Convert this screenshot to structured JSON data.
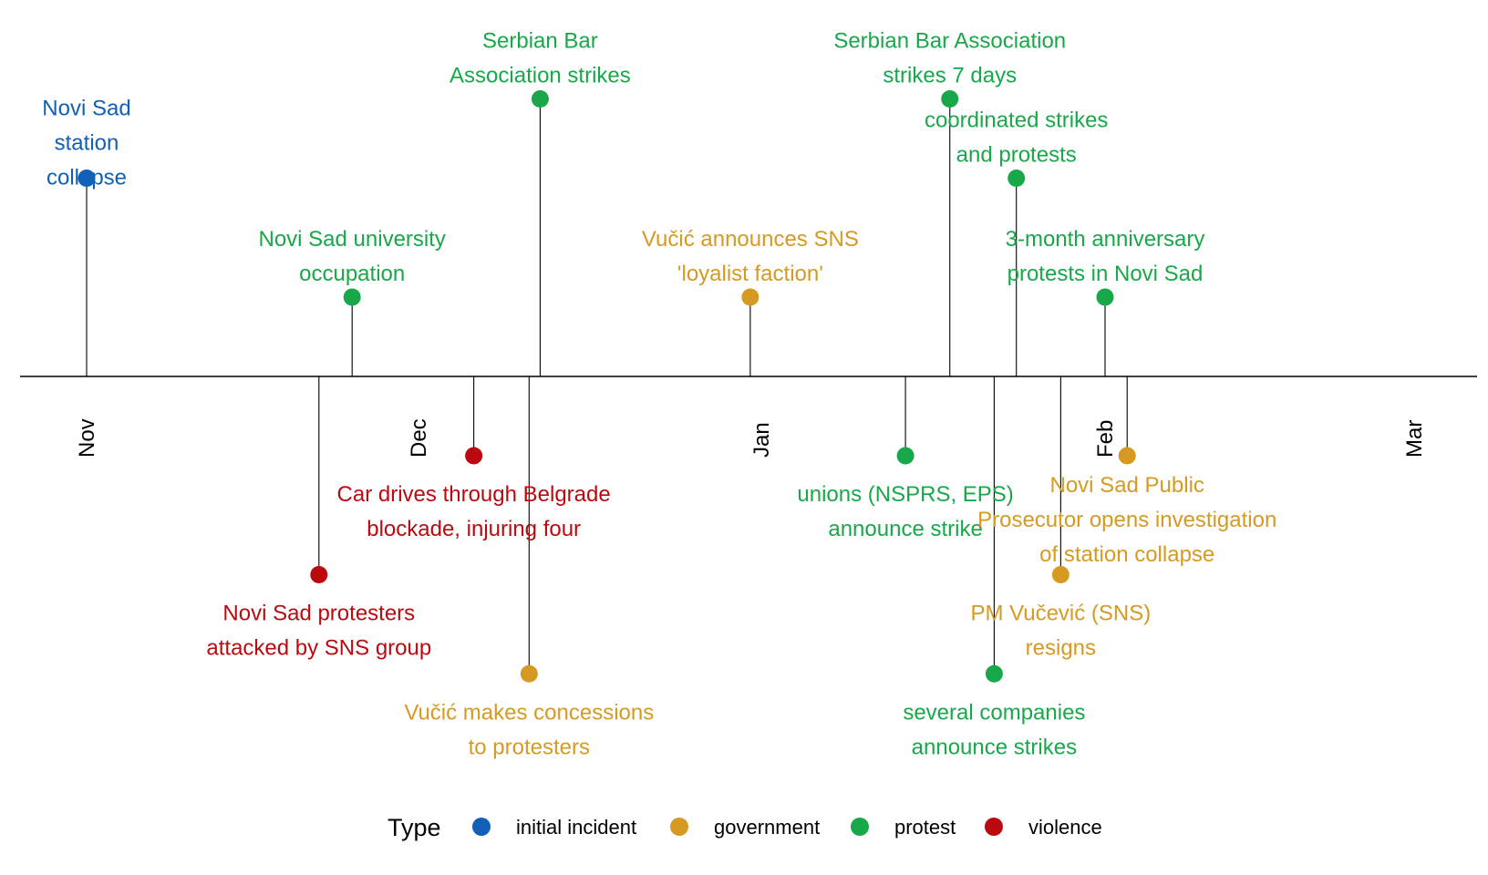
{
  "chart_data": {
    "type": "timeline",
    "colors": {
      "initial incident": "#1060b8",
      "government": "#d69a22",
      "protest": "#18a84a",
      "violence": "#bb0a0f"
    },
    "ticks": [
      {
        "label": "Nov",
        "date": "2024-11-01"
      },
      {
        "label": "Dec",
        "date": "2024-12-01"
      },
      {
        "label": "Jan",
        "date": "2025-01-01"
      },
      {
        "label": "Feb",
        "date": "2025-02-01"
      },
      {
        "label": "Mar",
        "date": "2025-03-01"
      }
    ],
    "x_range": [
      "2024-10-26",
      "2025-03-09"
    ],
    "events": [
      {
        "date": "2024-11-01",
        "type": "initial incident",
        "level": 2.5,
        "lines": [
          "Novi Sad",
          "station",
          "collapse"
        ]
      },
      {
        "date": "2024-11-22",
        "type": "violence",
        "level": -2.5,
        "lines": [
          "Novi Sad protesters",
          "attacked by SNS group"
        ]
      },
      {
        "date": "2024-11-25",
        "type": "protest",
        "level": 1.0,
        "lines": [
          "Novi Sad university",
          "occupation"
        ]
      },
      {
        "date": "2024-12-06",
        "type": "violence",
        "level": -1.0,
        "lines": [
          "Car drives through Belgrade",
          "blockade, injuring four"
        ]
      },
      {
        "date": "2024-12-11",
        "type": "government",
        "level": -3.75,
        "lines": [
          "Vučić makes concessions",
          "to protesters"
        ]
      },
      {
        "date": "2024-12-12",
        "type": "protest",
        "level": 3.5,
        "lines": [
          "Serbian Bar",
          "Association strikes"
        ]
      },
      {
        "date": "2024-12-31",
        "type": "government",
        "level": 1.0,
        "lines": [
          "Vučić announces SNS",
          "'loyalist faction'"
        ]
      },
      {
        "date": "2025-01-14",
        "type": "protest",
        "level": -1.0,
        "lines": [
          "unions (NSPRS, EPS)",
          "announce strike"
        ]
      },
      {
        "date": "2025-01-18",
        "type": "protest",
        "level": 3.5,
        "lines": [
          "Serbian Bar Association",
          "strikes 7 days"
        ]
      },
      {
        "date": "2025-01-22",
        "type": "protest",
        "level": -3.75,
        "lines": [
          "several companies",
          "announce strikes"
        ]
      },
      {
        "date": "2025-01-24",
        "type": "protest",
        "level": 2.5,
        "lines": [
          "coordinated strikes",
          "and protests"
        ]
      },
      {
        "date": "2025-01-28",
        "type": "government",
        "level": -2.5,
        "lines": [
          "PM Vučević (SNS)",
          "resigns"
        ]
      },
      {
        "date": "2025-02-01",
        "type": "protest",
        "level": 1.0,
        "lines": [
          "3-month anniversary",
          "protests in Novi Sad"
        ]
      },
      {
        "date": "2025-02-03",
        "type": "government",
        "level": -1.0,
        "lines": [
          "Novi Sad Public",
          "Prosecutor opens investigation",
          "of station collapse"
        ]
      }
    ],
    "legend": {
      "title": "Type",
      "position": "bottom",
      "entries": [
        "initial incident",
        "government",
        "protest",
        "violence"
      ]
    }
  }
}
